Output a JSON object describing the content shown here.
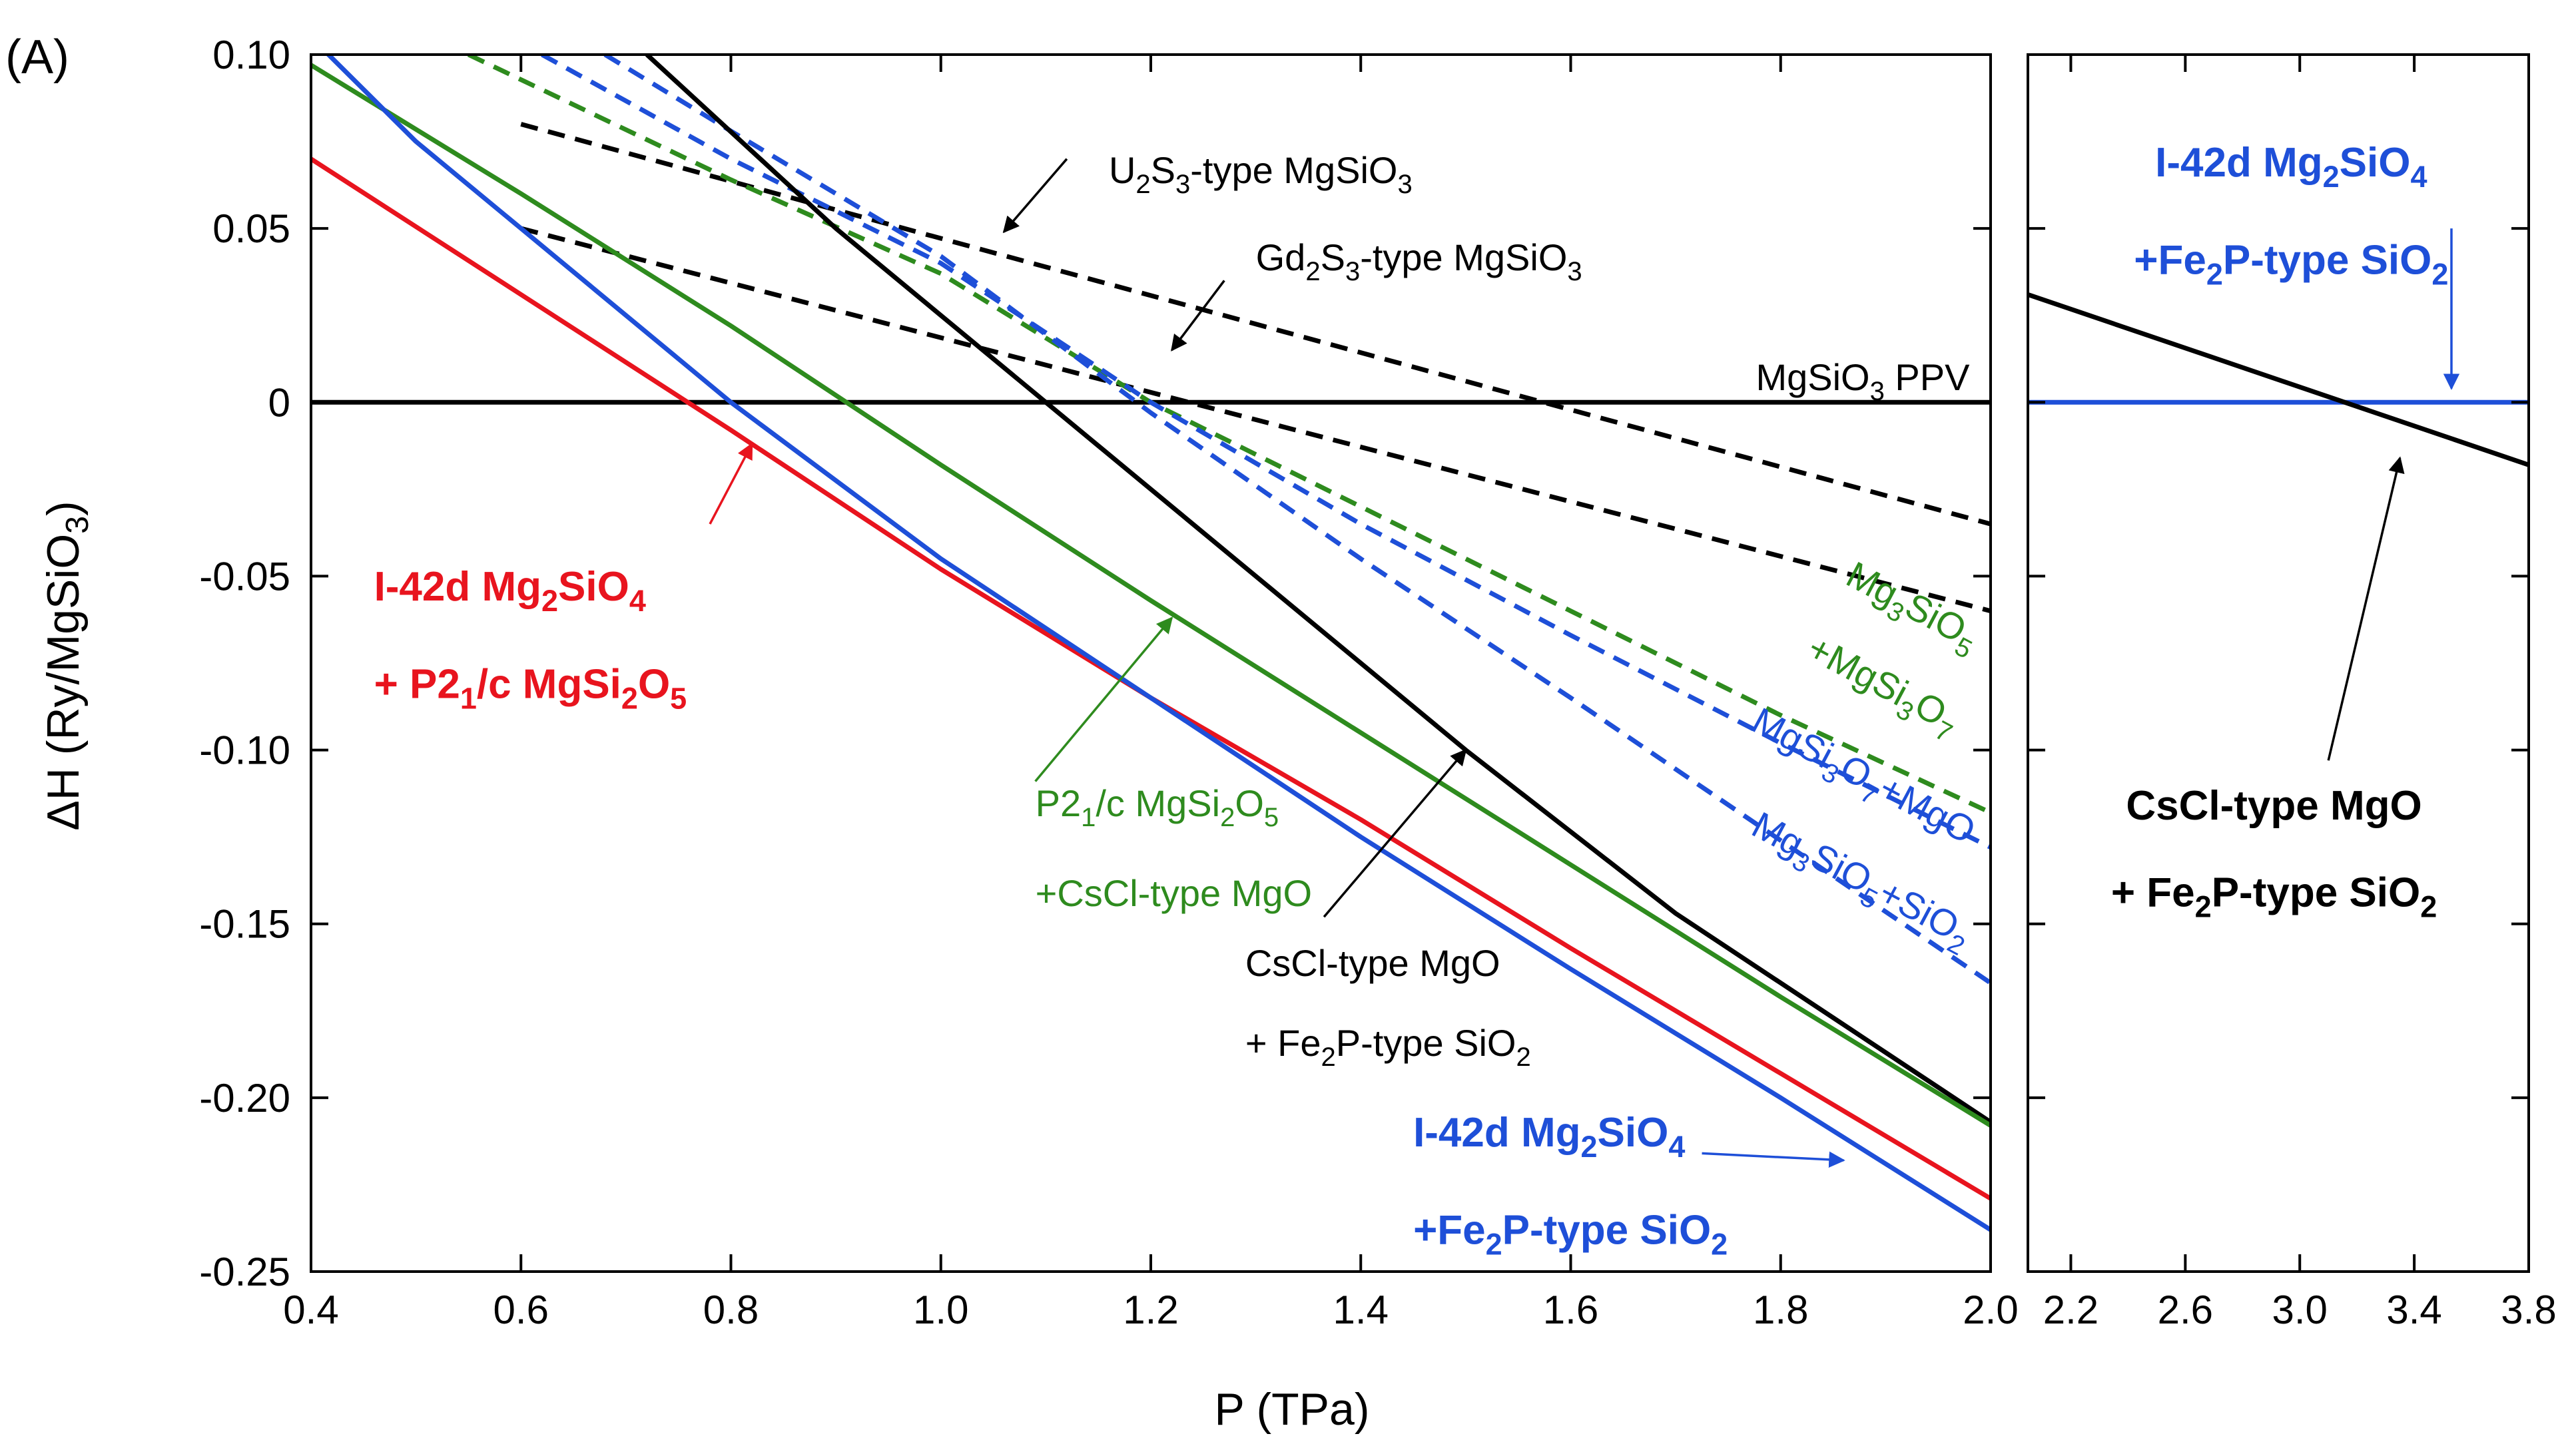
{
  "chart_data": {
    "type": "line",
    "panel_label": "(A)",
    "xlabel": "P (TPa)",
    "ylabel": "ΔH (Ry/MgSiO3)",
    "ylabel_parts": {
      "base": "ΔH (Ry/MgSiO",
      "sub": "3",
      "end": ")"
    },
    "ylim": [
      -0.25,
      0.1
    ],
    "y_ticks": [
      "0.10",
      "0.05",
      "0",
      "-0.05",
      "-0.10",
      "-0.15",
      "-0.20",
      "-0.25"
    ],
    "y_tick_values": [
      0.1,
      0.05,
      0,
      -0.05,
      -0.1,
      -0.15,
      -0.2,
      -0.25
    ],
    "panels": [
      {
        "name": "left",
        "xlim": [
          0.4,
          2.0
        ],
        "x_ticks": [
          "0.4",
          "0.6",
          "0.8",
          "1.0",
          "1.2",
          "1.4",
          "1.6",
          "1.8",
          "2.0"
        ],
        "x_tick_values": [
          0.4,
          0.6,
          0.8,
          1.0,
          1.2,
          1.4,
          1.6,
          1.8,
          2.0
        ],
        "series": [
          {
            "name": "MgSiO3 PPV",
            "color": "#000000",
            "dash": false,
            "x": [
              0.4,
              2.0
            ],
            "y": [
              0,
              0
            ]
          },
          {
            "name": "U2S3-type MgSiO3",
            "color": "#000000",
            "dash": true,
            "x": [
              0.6,
              2.0
            ],
            "y": [
              0.08,
              -0.035
            ]
          },
          {
            "name": "Gd2S3-type MgSiO3",
            "color": "#000000",
            "dash": true,
            "x": [
              0.6,
              2.0
            ],
            "y": [
              0.05,
              -0.06
            ]
          },
          {
            "name": "Mg3SiO5+MgSi3O7",
            "color": "#2e8b1e",
            "dash": true,
            "x": [
              0.55,
              0.8,
              1.0,
              1.2,
              1.4,
              1.6,
              1.8,
              2.0
            ],
            "y": [
              0.1,
              0.064,
              0.037,
              0.0,
              -0.03,
              -0.06,
              -0.09,
              -0.118
            ]
          },
          {
            "name": "MgSi3O7+MgO",
            "color": "#1e4fd8",
            "dash": true,
            "x": [
              0.62,
              0.8,
              1.0,
              1.2,
              1.4,
              1.6,
              1.8,
              2.0
            ],
            "y": [
              0.1,
              0.07,
              0.04,
              0.0,
              -0.035,
              -0.067,
              -0.098,
              -0.128
            ]
          },
          {
            "name": "Mg3SiO5+SiO2",
            "color": "#1e4fd8",
            "dash": true,
            "x": [
              0.68,
              0.8,
              1.0,
              1.2,
              1.4,
              1.6,
              1.8,
              2.0
            ],
            "y": [
              0.1,
              0.078,
              0.042,
              -0.003,
              -0.045,
              -0.085,
              -0.126,
              -0.167
            ]
          },
          {
            "name": "CsCl-type MgO + Fe2P-type SiO2",
            "color": "#000000",
            "dash": false,
            "x": [
              0.72,
              0.9,
              1.1,
              1.3,
              1.5,
              1.7,
              1.85,
              2.0
            ],
            "y": [
              0.1,
              0.05,
              0.0,
              -0.05,
              -0.1,
              -0.147,
              -0.177,
              -0.207
            ]
          },
          {
            "name": "P21/c MgSi2O5 +CsCl-type MgO",
            "color": "#2e8b1e",
            "dash": false,
            "x": [
              0.4,
              0.6,
              0.8,
              1.0,
              1.2,
              1.4,
              1.6,
              1.8,
              2.0
            ],
            "y": [
              0.097,
              0.06,
              0.022,
              -0.018,
              -0.057,
              -0.095,
              -0.133,
              -0.171,
              -0.208
            ]
          },
          {
            "name": "I-42d Mg2SiO4 + P21/c MgSi2O5",
            "color": "#e8141e",
            "dash": false,
            "x": [
              0.4,
              0.6,
              0.8,
              1.0,
              1.2,
              1.4,
              1.6,
              1.8,
              2.0
            ],
            "y": [
              0.07,
              0.031,
              -0.008,
              -0.048,
              -0.085,
              -0.12,
              -0.157,
              -0.193,
              -0.229
            ]
          },
          {
            "name": "I-42d Mg2SiO4 +Fe2P-type SiO2",
            "color": "#1e4fd8",
            "dash": false,
            "x": [
              0.4,
              0.5,
              0.6,
              0.8,
              1.0,
              1.2,
              1.4,
              1.6,
              1.8,
              2.0
            ],
            "y": [
              0.105,
              0.075,
              0.05,
              0.0,
              -0.045,
              -0.085,
              -0.125,
              -0.163,
              -0.2,
              -0.238
            ]
          }
        ]
      },
      {
        "name": "right",
        "xlim": [
          2.05,
          3.8
        ],
        "x_ticks": [
          "2.2",
          "2.6",
          "3.0",
          "3.4",
          "3.8"
        ],
        "x_tick_values": [
          2.2,
          2.6,
          3.0,
          3.4,
          3.8
        ],
        "series": [
          {
            "name": "I-42d Mg2SiO4 +Fe2P-type SiO2",
            "color": "#1e4fd8",
            "dash": false,
            "x": [
              2.05,
              3.8
            ],
            "y": [
              0,
              0
            ]
          },
          {
            "name": "CsCl-type MgO + Fe2P-type SiO2",
            "color": "#000000",
            "dash": false,
            "x": [
              2.05,
              3.8
            ],
            "y": [
              0.031,
              -0.018
            ]
          }
        ]
      }
    ],
    "annotations": [
      {
        "id": "u2s3",
        "panel": "left",
        "color": "#000000",
        "bold": false,
        "lines": [
          [
            "U",
            {
              "sub": "2"
            },
            "S",
            {
              "sub": "3"
            },
            "-type MgSiO",
            {
              "sub": "3"
            }
          ]
        ],
        "at": [
          1.16,
          0.063
        ],
        "arrow_from": [
          1.12,
          0.07
        ],
        "arrow_to": [
          1.06,
          0.049
        ]
      },
      {
        "id": "gd2s3",
        "panel": "left",
        "color": "#000000",
        "bold": false,
        "lines": [
          [
            "Gd",
            {
              "sub": "2"
            },
            "S",
            {
              "sub": "3"
            },
            "-type MgSiO",
            {
              "sub": "3"
            }
          ]
        ],
        "at": [
          1.3,
          0.038
        ],
        "arrow_from": [
          1.27,
          0.035
        ],
        "arrow_to": [
          1.22,
          0.015
        ]
      },
      {
        "id": "ppv",
        "panel": "left",
        "color": "#000000",
        "bold": false,
        "anchor": "end",
        "lines": [
          [
            "MgSiO",
            {
              "sub": "3"
            },
            " PPV"
          ]
        ],
        "at": [
          1.98,
          0.0035
        ]
      },
      {
        "id": "red",
        "panel": "left",
        "color": "#e8141e",
        "bold": true,
        "lines": [
          [
            "I-42d Mg",
            {
              "sub": "2"
            },
            "SiO",
            {
              "sub": "4"
            }
          ],
          [
            "+ P2",
            {
              "sub": "1"
            },
            "/c MgSi",
            {
              "sub": "2"
            },
            "O",
            {
              "sub": "5"
            }
          ]
        ],
        "at": [
          0.46,
          -0.057
        ],
        "line_gap": 0.025,
        "arrow_from": [
          0.78,
          -0.035
        ],
        "arrow_to": [
          0.82,
          -0.012
        ]
      },
      {
        "id": "green_p21c",
        "panel": "left",
        "color": "#2e8b1e",
        "bold": false,
        "lines": [
          [
            "P2",
            {
              "sub": "1"
            },
            "/c MgSi",
            {
              "sub": "2"
            },
            "O",
            {
              "sub": "5"
            }
          ],
          [
            "+CsCl-type MgO"
          ]
        ],
        "at": [
          1.09,
          -0.119
        ],
        "line_gap": 0.023,
        "arrow_from": [
          1.09,
          -0.109
        ],
        "arrow_to": [
          1.22,
          -0.062
        ]
      },
      {
        "id": "black_cscl",
        "panel": "left",
        "color": "#000000",
        "bold": false,
        "lines": [
          [
            "CsCl-type MgO"
          ],
          [
            "+ Fe",
            {
              "sub": "2"
            },
            "P-type SiO",
            {
              "sub": "2"
            }
          ]
        ],
        "at": [
          1.29,
          -0.165
        ],
        "line_gap": 0.023,
        "arrow_from": [
          1.365,
          -0.148
        ],
        "arrow_to": [
          1.5,
          -0.1
        ]
      },
      {
        "id": "blue_bottom",
        "panel": "left",
        "color": "#1e4fd8",
        "bold": true,
        "lines": [
          [
            "I-42d Mg",
            {
              "sub": "2"
            },
            "SiO",
            {
              "sub": "4"
            }
          ],
          [
            "+Fe",
            {
              "sub": "2"
            },
            "P-type SiO",
            {
              "sub": "2"
            }
          ]
        ],
        "at": [
          1.45,
          -0.214
        ],
        "line_gap": 0.025,
        "arrow_from": [
          1.725,
          -0.216
        ],
        "arrow_to": [
          1.86,
          -0.218
        ]
      },
      {
        "id": "green_rot",
        "panel": "left",
        "color": "#2e8b1e",
        "bold": false,
        "rotate": 28,
        "lines": [
          [
            "Mg",
            {
              "sub": "3"
            },
            "SiO",
            {
              "sub": "5"
            }
          ],
          [
            "+MgSi",
            {
              "sub": "3"
            },
            "O",
            {
              "sub": "7"
            }
          ]
        ],
        "at": [
          1.86,
          -0.052
        ],
        "line_gap": 0.021
      },
      {
        "id": "blue_rot1",
        "panel": "left",
        "color": "#1e4fd8",
        "bold": false,
        "rotate": 28,
        "lines": [
          [
            "MgSi",
            {
              "sub": "3"
            },
            "O",
            {
              "sub": "7"
            },
            "+MgO"
          ]
        ],
        "at": [
          1.77,
          -0.094
        ]
      },
      {
        "id": "blue_rot2",
        "panel": "left",
        "color": "#1e4fd8",
        "bold": false,
        "rotate": 28,
        "lines": [
          [
            "Mg",
            {
              "sub": "3"
            },
            "SiO",
            {
              "sub": "5"
            },
            "+SiO",
            {
              "sub": "2"
            }
          ]
        ],
        "at": [
          1.77,
          -0.124
        ]
      },
      {
        "id": "right_blue",
        "panel": "right",
        "color": "#1e4fd8",
        "bold": true,
        "anchor": "middle",
        "lines": [
          [
            "I-42d Mg",
            {
              "sub": "2"
            },
            "SiO",
            {
              "sub": "4"
            }
          ],
          [
            "+Fe",
            {
              "sub": "2"
            },
            "P-type SiO",
            {
              "sub": "2"
            }
          ]
        ],
        "at": [
          2.97,
          0.065
        ],
        "line_gap": 0.025,
        "arrow_from": [
          3.53,
          0.05
        ],
        "arrow_to": [
          3.53,
          0.004
        ]
      },
      {
        "id": "right_black",
        "panel": "right",
        "color": "#000000",
        "bold": true,
        "anchor": "middle",
        "lines": [
          [
            "CsCl-type MgO"
          ],
          [
            "+ Fe",
            {
              "sub": "2"
            },
            "P-type SiO",
            {
              "sub": "2"
            }
          ]
        ],
        "at": [
          2.91,
          -0.12
        ],
        "line_gap": 0.025,
        "arrow_from": [
          3.1,
          -0.103
        ],
        "arrow_to": [
          3.35,
          -0.016
        ]
      }
    ]
  }
}
